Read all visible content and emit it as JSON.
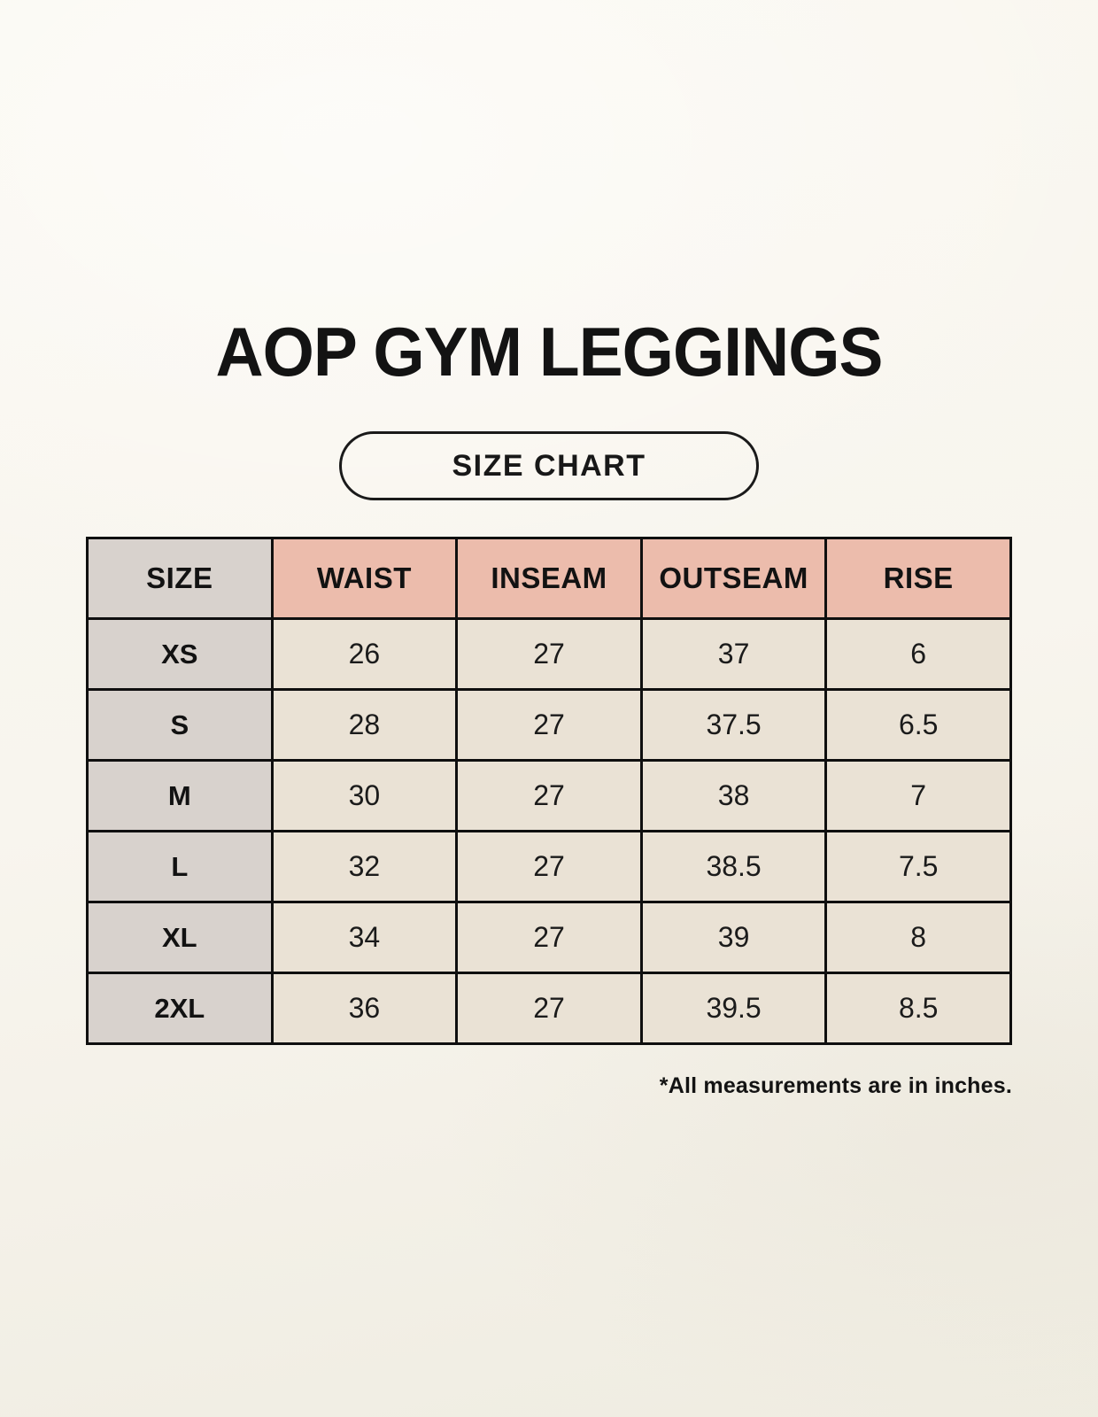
{
  "header": {
    "title": "AOP GYM LEGGINGS",
    "badge_label": "SIZE CHART"
  },
  "chart_data": {
    "type": "table",
    "title": "AOP GYM LEGGINGS",
    "subtitle": "SIZE CHART",
    "columns": [
      "SIZE",
      "WAIST",
      "INSEAM",
      "OUTSEAM",
      "RISE"
    ],
    "rows": [
      [
        "XS",
        "26",
        "27",
        "37",
        "6"
      ],
      [
        "S",
        "28",
        "27",
        "37.5",
        "6.5"
      ],
      [
        "M",
        "30",
        "27",
        "38",
        "7"
      ],
      [
        "L",
        "32",
        "27",
        "38.5",
        "7.5"
      ],
      [
        "XL",
        "34",
        "27",
        "39",
        "8"
      ],
      [
        "2XL",
        "36",
        "27",
        "39.5",
        "8.5"
      ]
    ]
  },
  "footnote": "*All measurements are in inches.",
  "colors": {
    "background": "#f8f5ee",
    "header_salmon": "#ecbcac",
    "size_column_gray": "#d8d2cd",
    "data_cell_cream": "#eae2d5",
    "table_border": "#0f0f0f",
    "text": "#131313"
  }
}
